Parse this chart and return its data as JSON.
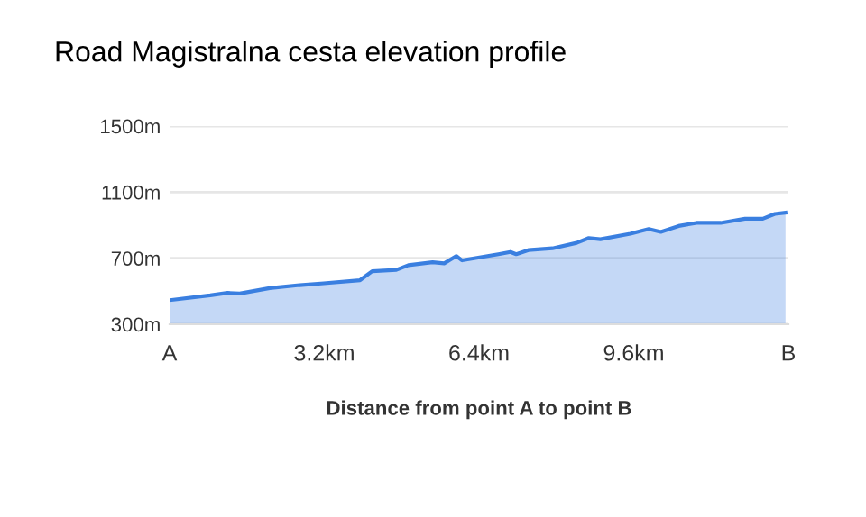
{
  "chart_data": {
    "type": "area",
    "title": "Road Magistralna cesta elevation profile",
    "xlabel": "Distance from point A to point B",
    "x": [
      0,
      0.84,
      1.2,
      1.45,
      2.07,
      2.69,
      3.19,
      3.94,
      4.19,
      4.69,
      4.94,
      5.44,
      5.68,
      5.93,
      6.05,
      6.8,
      7.05,
      7.17,
      7.42,
      7.92,
      8.42,
      8.67,
      8.91,
      9.53,
      9.91,
      10.16,
      10.53,
      10.9,
      11.4,
      11.9,
      12.27,
      12.52,
      12.74
    ],
    "series": [
      {
        "color": "#3a7fe0",
        "values": [
          446,
          475,
          490,
          486,
          519,
          537,
          548,
          567,
          621,
          629,
          658,
          676,
          669,
          713,
          687,
          724,
          738,
          724,
          749,
          760,
          793,
          822,
          815,
          848,
          877,
          859,
          895,
          914,
          914,
          939,
          939,
          968,
          976
        ]
      }
    ],
    "xlim": [
      0,
      12.8
    ],
    "xticks": [
      {
        "value": 0,
        "label": "A"
      },
      {
        "value": 3.2,
        "label": "3.2km"
      },
      {
        "value": 6.4,
        "label": "6.4km"
      },
      {
        "value": 9.6,
        "label": "9.6km"
      },
      {
        "value": 12.8,
        "label": "B"
      }
    ],
    "ylim": [
      300,
      1500
    ],
    "yticks": [
      {
        "value": 300,
        "label": "300m"
      },
      {
        "value": 700,
        "label": "700m"
      },
      {
        "value": 1100,
        "label": "1100m"
      },
      {
        "value": 1500,
        "label": "1500m"
      }
    ],
    "grid": "y",
    "legend": false
  }
}
